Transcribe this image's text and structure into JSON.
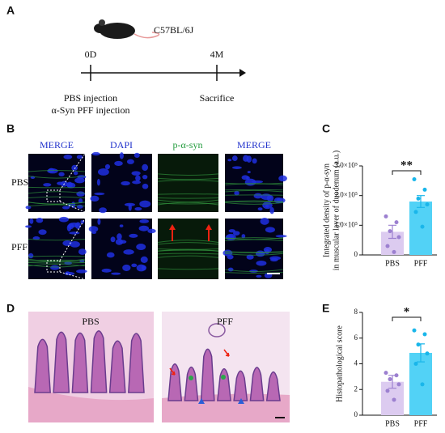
{
  "panel_a": {
    "label": "A",
    "strain": "C57BL/6J",
    "start": "0D",
    "end": "4M",
    "injections": [
      "PBS injection",
      "α-Syn PFF injection"
    ],
    "endpoint": "Sacrifice"
  },
  "panel_b": {
    "label": "B",
    "columns": [
      "MERGE",
      "DAPI",
      "p-α-syn",
      "MERGE"
    ],
    "rows": [
      "PBS",
      "PFF"
    ]
  },
  "panel_d": {
    "label": "D",
    "images": [
      "PBS",
      "PFF"
    ]
  },
  "chart_data": [
    {
      "type": "bar",
      "panel": "C",
      "ylabel": [
        "Integrated density of p-α-syn",
        "in muscular layer of duodenum (a.u.)"
      ],
      "categories": [
        "PBS",
        "PFF"
      ],
      "values": [
        78000,
        180000
      ],
      "errors": [
        22000,
        20000
      ],
      "points": [
        [
          130000,
          110000,
          80000,
          60000,
          30000,
          10000
        ],
        [
          255000,
          220000,
          190000,
          170000,
          145000,
          95000
        ]
      ],
      "colors": [
        "#dccbf0",
        "#52d2f6"
      ],
      "point_colors": [
        "#9c80d0",
        "#19b6ea"
      ],
      "ylim": [
        0,
        300000
      ],
      "yticks": [
        0,
        {
          "value": 100000,
          "label": "1.0×10⁵"
        },
        {
          "value": 200000,
          "label": "2.0×10⁵"
        },
        {
          "value": 300000,
          "label": "3.0×10⁵"
        }
      ],
      "significance": "**"
    },
    {
      "type": "bar",
      "panel": "E",
      "ylabel": [
        "Histopathological score"
      ],
      "categories": [
        "PBS",
        "PFF"
      ],
      "values": [
        2.6,
        4.85
      ],
      "errors": [
        0.5,
        0.7
      ],
      "points": [
        [
          3.3,
          3.1,
          2.8,
          2.4,
          1.9,
          1.2
        ],
        [
          6.6,
          6.3,
          5.5,
          4.8,
          4.0,
          2.4
        ]
      ],
      "colors": [
        "#dccbf0",
        "#52d2f6"
      ],
      "point_colors": [
        "#9c80d0",
        "#19b6ea"
      ],
      "ylim": [
        0,
        8
      ],
      "yticks": [
        0,
        2,
        4,
        6,
        8
      ],
      "significance": "*"
    }
  ]
}
